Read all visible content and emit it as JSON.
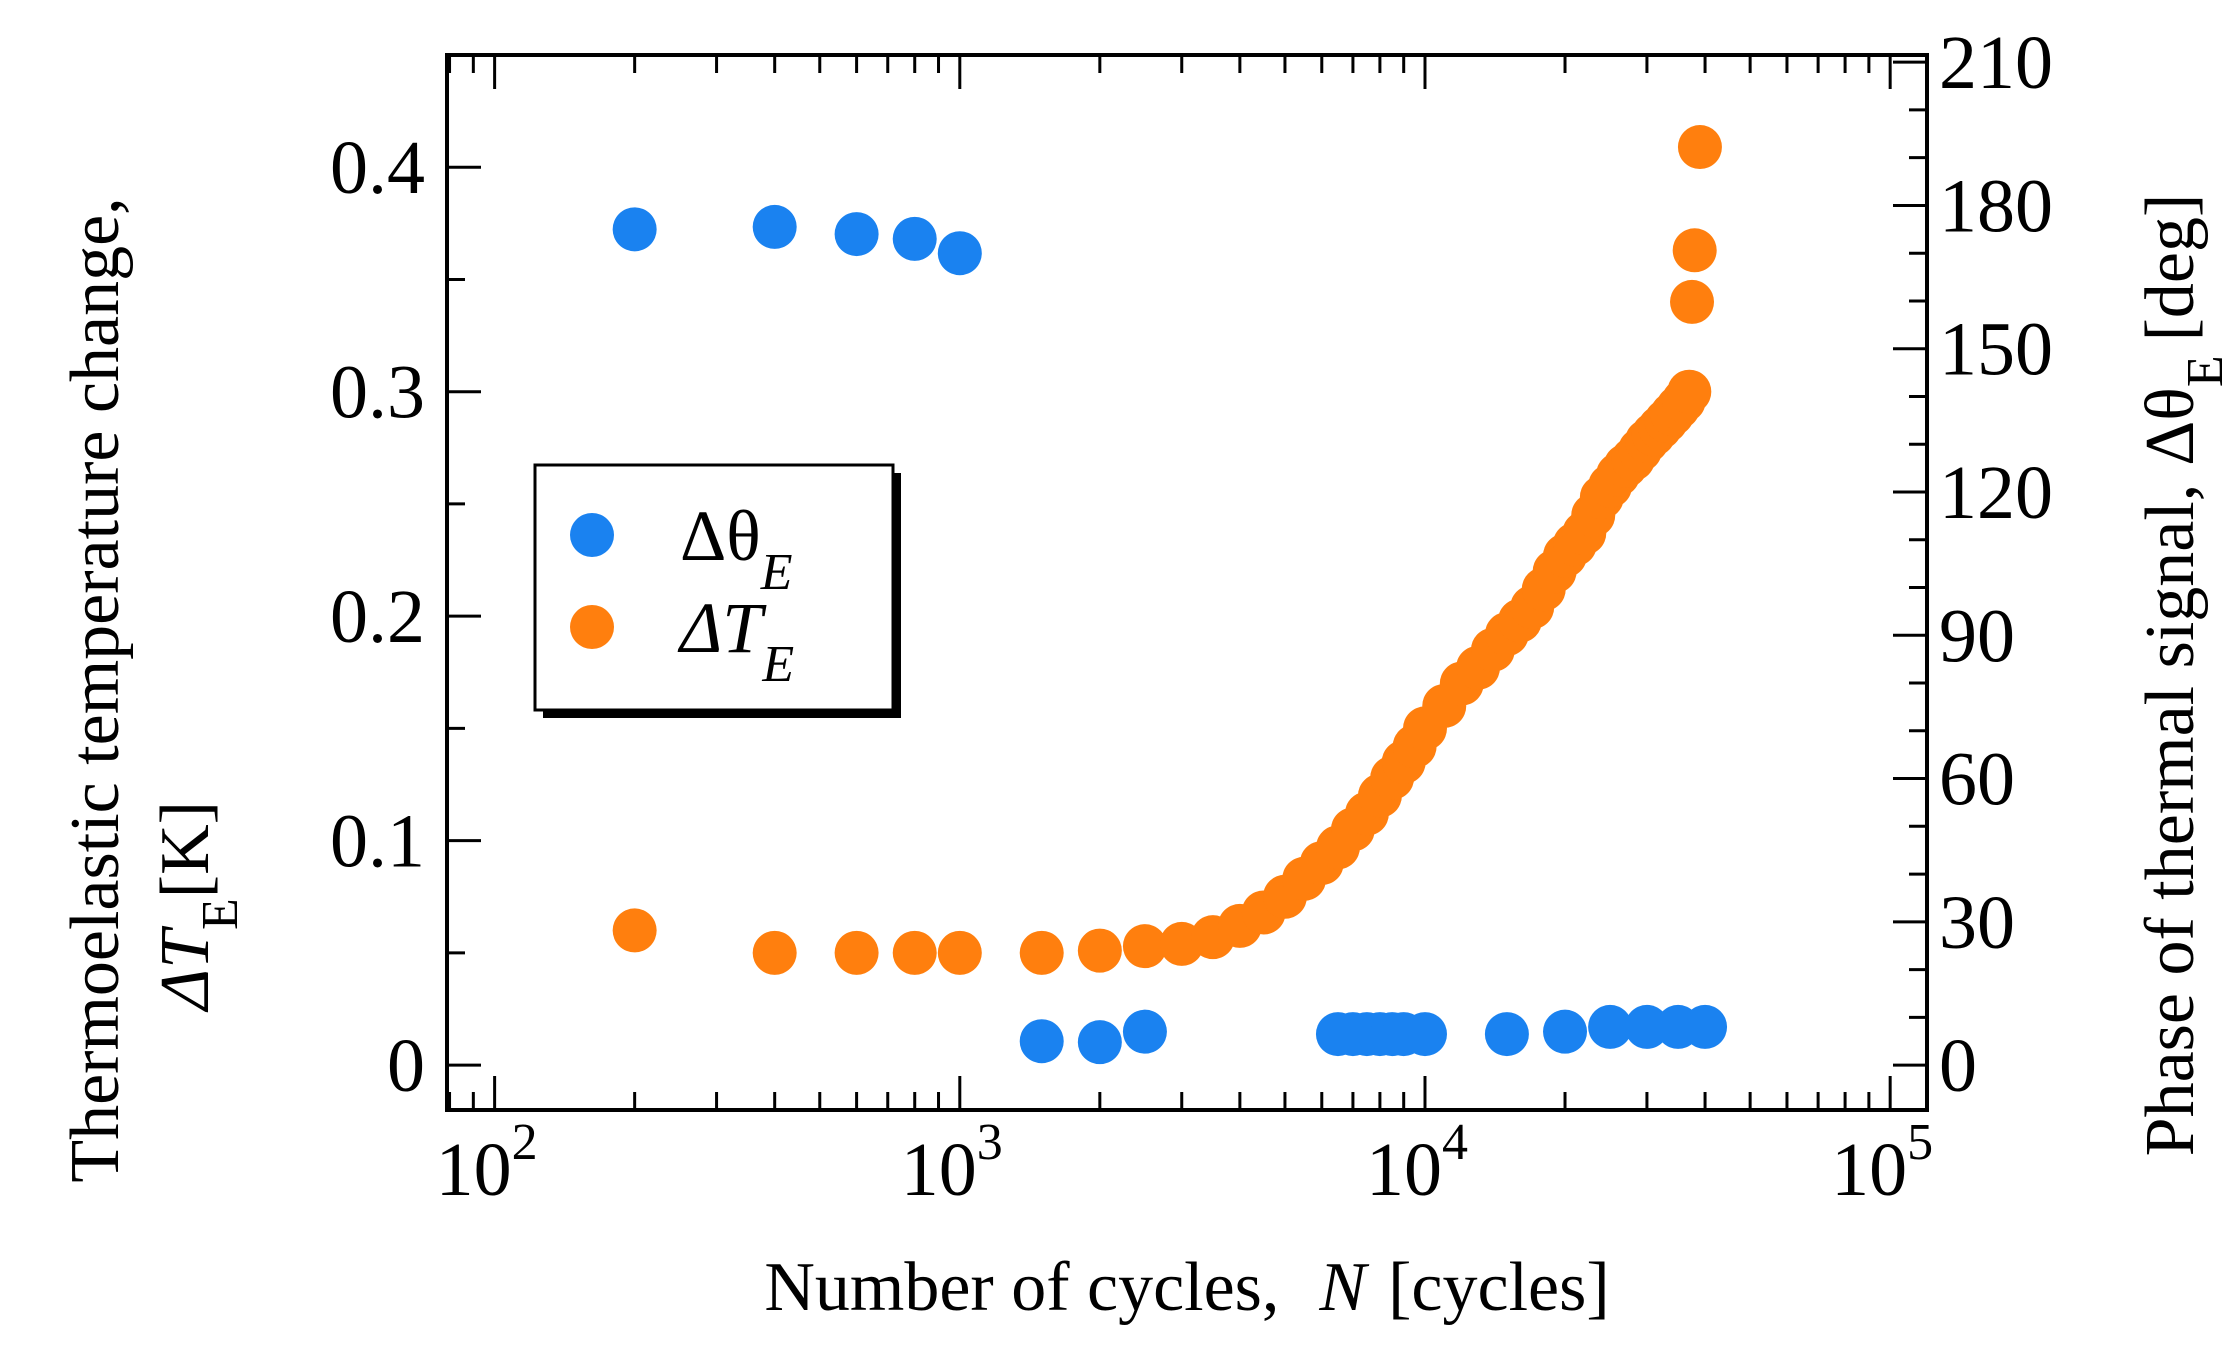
{
  "chart_data": {
    "type": "scatter",
    "x_scale": "log",
    "xlim": [
      79,
      120000
    ],
    "xlabel_text": "Number of cycles,",
    "xlabel_var": "N",
    "xlabel_unit": "[cycles]",
    "x_ticks": [
      {
        "value": 100,
        "base": "10",
        "exp": "2"
      },
      {
        "value": 1000,
        "base": "10",
        "exp": "3"
      },
      {
        "value": 10000,
        "base": "10",
        "exp": "4"
      },
      {
        "value": 100000,
        "base": "10",
        "exp": "5"
      }
    ],
    "y_left": {
      "ylim": [
        -0.02,
        0.45
      ],
      "ticks": [
        0,
        0.1,
        0.2,
        0.3,
        0.4
      ],
      "tick_labels": [
        "0",
        "0.1",
        "0.2",
        "0.3",
        "0.4"
      ],
      "label_line1": "Thermoelastic temperature change,",
      "label_line2_symbol": "ΔT",
      "label_line2_sub": "E",
      "label_line2_unit": "[K]"
    },
    "y_right": {
      "ylim": [
        -9.4,
        211.5
      ],
      "ticks": [
        0,
        30,
        60,
        90,
        120,
        150,
        180,
        210
      ],
      "tick_labels": [
        "0",
        "30",
        "60",
        "90",
        "120",
        "150",
        "180",
        "210"
      ],
      "label_text": "Phase of thermal signal,",
      "label_symbol": "Δθ",
      "label_sub": "E",
      "label_unit": "[deg]"
    },
    "legend": {
      "position": "center-left",
      "entries": [
        {
          "symbol": "Δθ",
          "sub": "E",
          "color": "#1a82f0"
        },
        {
          "symbol": "ΔT",
          "sub": "E",
          "color": "#ff7f0e"
        }
      ]
    },
    "series": [
      {
        "name": "ΔθE",
        "axis": "right",
        "color": "#1a82f0",
        "points": [
          [
            200,
            175
          ],
          [
            400,
            175.5
          ],
          [
            600,
            174
          ],
          [
            800,
            173
          ],
          [
            1000,
            170
          ],
          [
            1500,
            5
          ],
          [
            2000,
            4.8
          ],
          [
            2500,
            7
          ],
          [
            6500,
            6.5
          ],
          [
            7000,
            6.5
          ],
          [
            7500,
            6.5
          ],
          [
            8000,
            6.5
          ],
          [
            8500,
            6.5
          ],
          [
            9000,
            6.5
          ],
          [
            10000,
            6.5
          ],
          [
            15000,
            6.5
          ],
          [
            20000,
            7
          ],
          [
            25000,
            8
          ],
          [
            30000,
            8
          ],
          [
            35000,
            8
          ],
          [
            40000,
            8
          ]
        ]
      },
      {
        "name": "ΔTE",
        "axis": "left",
        "color": "#ff7f0e",
        "points": [
          [
            200,
            0.06
          ],
          [
            400,
            0.05
          ],
          [
            600,
            0.05
          ],
          [
            800,
            0.05
          ],
          [
            1000,
            0.05
          ],
          [
            1500,
            0.05
          ],
          [
            2000,
            0.051
          ],
          [
            2500,
            0.053
          ],
          [
            3000,
            0.054
          ],
          [
            3500,
            0.057
          ],
          [
            4000,
            0.062
          ],
          [
            4500,
            0.068
          ],
          [
            5000,
            0.075
          ],
          [
            5500,
            0.083
          ],
          [
            6000,
            0.09
          ],
          [
            6500,
            0.097
          ],
          [
            7000,
            0.105
          ],
          [
            7500,
            0.112
          ],
          [
            8000,
            0.12
          ],
          [
            8500,
            0.128
          ],
          [
            9000,
            0.135
          ],
          [
            9500,
            0.142
          ],
          [
            10000,
            0.15
          ],
          [
            11000,
            0.16
          ],
          [
            12000,
            0.17
          ],
          [
            13000,
            0.177
          ],
          [
            14000,
            0.185
          ],
          [
            15000,
            0.192
          ],
          [
            16000,
            0.198
          ],
          [
            17000,
            0.204
          ],
          [
            18000,
            0.212
          ],
          [
            19000,
            0.22
          ],
          [
            20000,
            0.227
          ],
          [
            21000,
            0.232
          ],
          [
            22000,
            0.237
          ],
          [
            23000,
            0.245
          ],
          [
            24000,
            0.253
          ],
          [
            25000,
            0.258
          ],
          [
            26000,
            0.263
          ],
          [
            27000,
            0.267
          ],
          [
            28000,
            0.27
          ],
          [
            29000,
            0.274
          ],
          [
            30000,
            0.278
          ],
          [
            31000,
            0.281
          ],
          [
            32000,
            0.284
          ],
          [
            33000,
            0.287
          ],
          [
            34000,
            0.29
          ],
          [
            35000,
            0.293
          ],
          [
            36000,
            0.296
          ],
          [
            37000,
            0.3
          ],
          [
            37500,
            0.34
          ],
          [
            38000,
            0.363
          ],
          [
            39000,
            0.409
          ]
        ]
      }
    ]
  }
}
